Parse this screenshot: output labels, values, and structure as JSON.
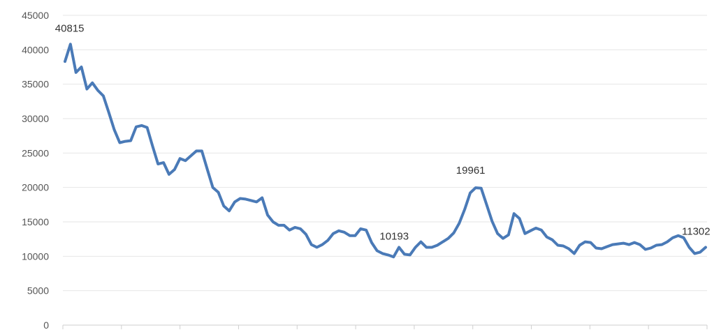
{
  "chart_data": {
    "type": "line",
    "title": "",
    "xlabel": "",
    "ylabel": "",
    "ylim": [
      0,
      45000
    ],
    "yticks": [
      0,
      5000,
      10000,
      15000,
      20000,
      25000,
      30000,
      35000,
      40000,
      45000
    ],
    "grid": true,
    "legend": "none",
    "color": "#4a7ab7",
    "series": [
      {
        "values": [
          38300,
          40815,
          36700,
          37500,
          34300,
          35200,
          34100,
          33300,
          30900,
          28400,
          26500,
          26700,
          26800,
          28800,
          29000,
          28700,
          26000,
          23400,
          23600,
          21900,
          22600,
          24200,
          23900,
          24600,
          25300,
          25300,
          22600,
          20000,
          19300,
          17300,
          16600,
          17900,
          18400,
          18300,
          18100,
          17900,
          18500,
          16000,
          15000,
          14500,
          14500,
          13800,
          14200,
          14000,
          13200,
          11700,
          11300,
          11700,
          12300,
          13300,
          13700,
          13500,
          13000,
          13000,
          14000,
          13800,
          12000,
          10800,
          10400,
          10193,
          9900,
          11300,
          10300,
          10200,
          11300,
          12100,
          11300,
          11300,
          11600,
          12100,
          12600,
          13400,
          14800,
          16800,
          19200,
          19961,
          19900,
          17500,
          15100,
          13300,
          12600,
          13100,
          16200,
          15500,
          13300,
          13700,
          14100,
          13800,
          12800,
          12400,
          11600,
          11500,
          11100,
          10400,
          11600,
          12100,
          12000,
          11200,
          11100,
          11400,
          11700,
          11800,
          11900,
          11700,
          12000,
          11700,
          11000,
          11200,
          11600,
          11700,
          12100,
          12700,
          13000,
          12700,
          11300,
          10400,
          10600,
          11302
        ]
      }
    ],
    "annotations": [
      {
        "text": "40815",
        "index": 1,
        "value": 40815
      },
      {
        "text": "10193",
        "index": 59,
        "value": 10193
      },
      {
        "text": "19961",
        "index": 75,
        "value": 19961
      },
      {
        "text": "11302",
        "index": 117,
        "value": 11302
      }
    ]
  }
}
